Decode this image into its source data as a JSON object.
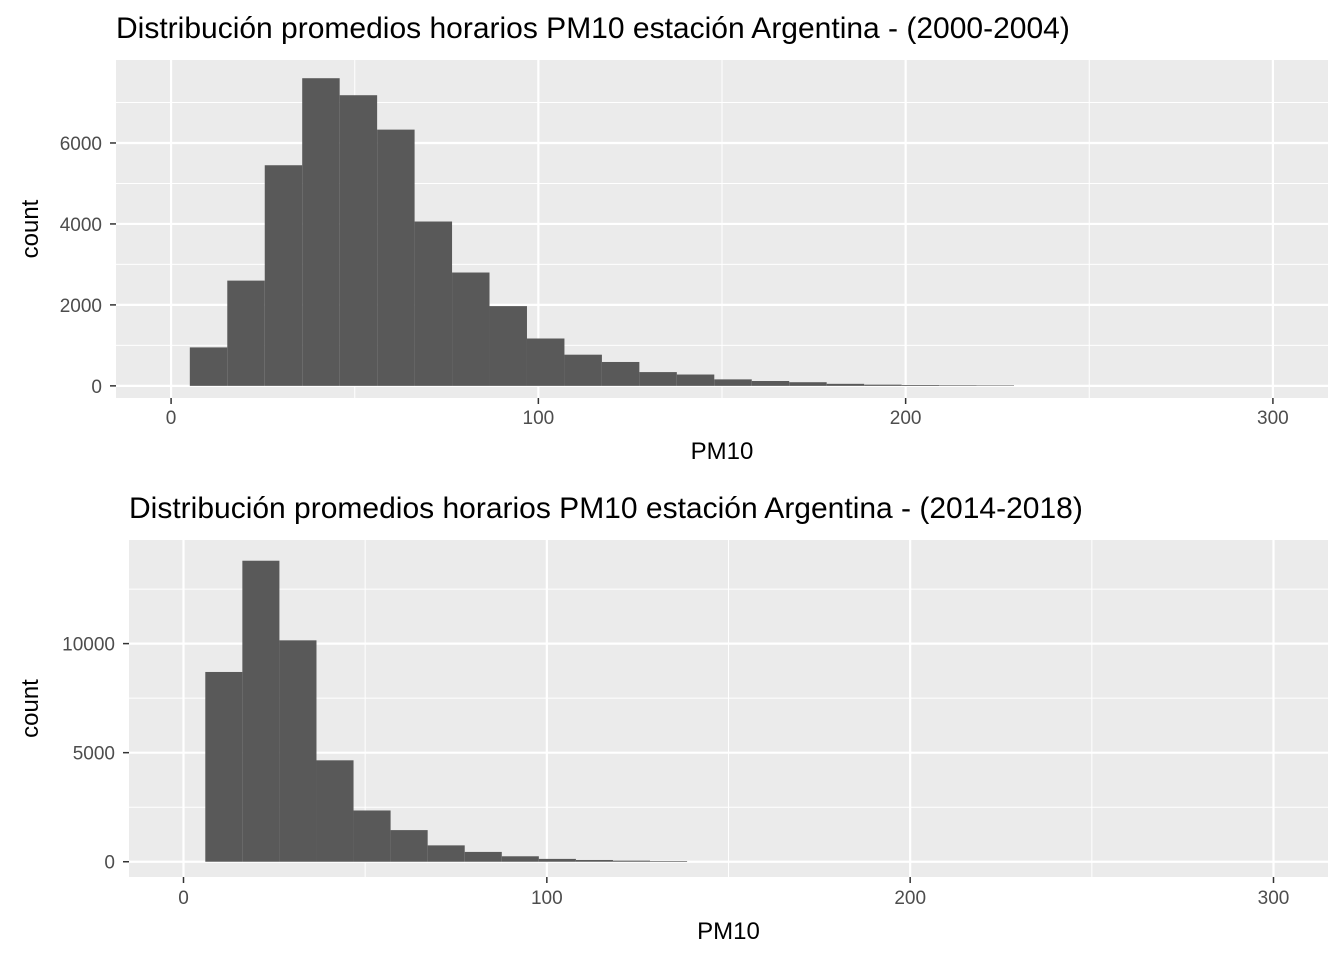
{
  "chart_data": [
    {
      "type": "bar",
      "title": "Distribución promedios horarios PM10 estación Argentina - (2000-2004)",
      "xlabel": "PM10",
      "ylabel": "count",
      "xlim": [
        -15,
        315
      ],
      "ylim": [
        -300,
        8050
      ],
      "x_ticks": [
        0,
        100,
        200,
        300
      ],
      "y_ticks": [
        0,
        2000,
        4000,
        6000
      ],
      "grid": true,
      "bin_width": 10.2,
      "bin_start": 5.1,
      "values": [
        950,
        2600,
        5450,
        7600,
        7180,
        6330,
        4060,
        2800,
        1970,
        1170,
        770,
        590,
        340,
        280,
        160,
        120,
        90,
        50,
        30,
        20,
        15,
        10
      ]
    },
    {
      "type": "bar",
      "title": "Distribución promedios horarios PM10 estación Argentina - (2014-2018)",
      "xlabel": "PM10",
      "ylabel": "count",
      "xlim": [
        -15,
        315
      ],
      "ylim": [
        -700,
        14750
      ],
      "x_ticks": [
        0,
        100,
        200,
        300
      ],
      "y_ticks": [
        0,
        5000,
        10000
      ],
      "grid": true,
      "bin_width": 10.2,
      "bin_start": 6.0,
      "values": [
        8700,
        13800,
        10150,
        4650,
        2350,
        1450,
        750,
        450,
        250,
        130,
        80,
        50,
        30
      ]
    }
  ]
}
